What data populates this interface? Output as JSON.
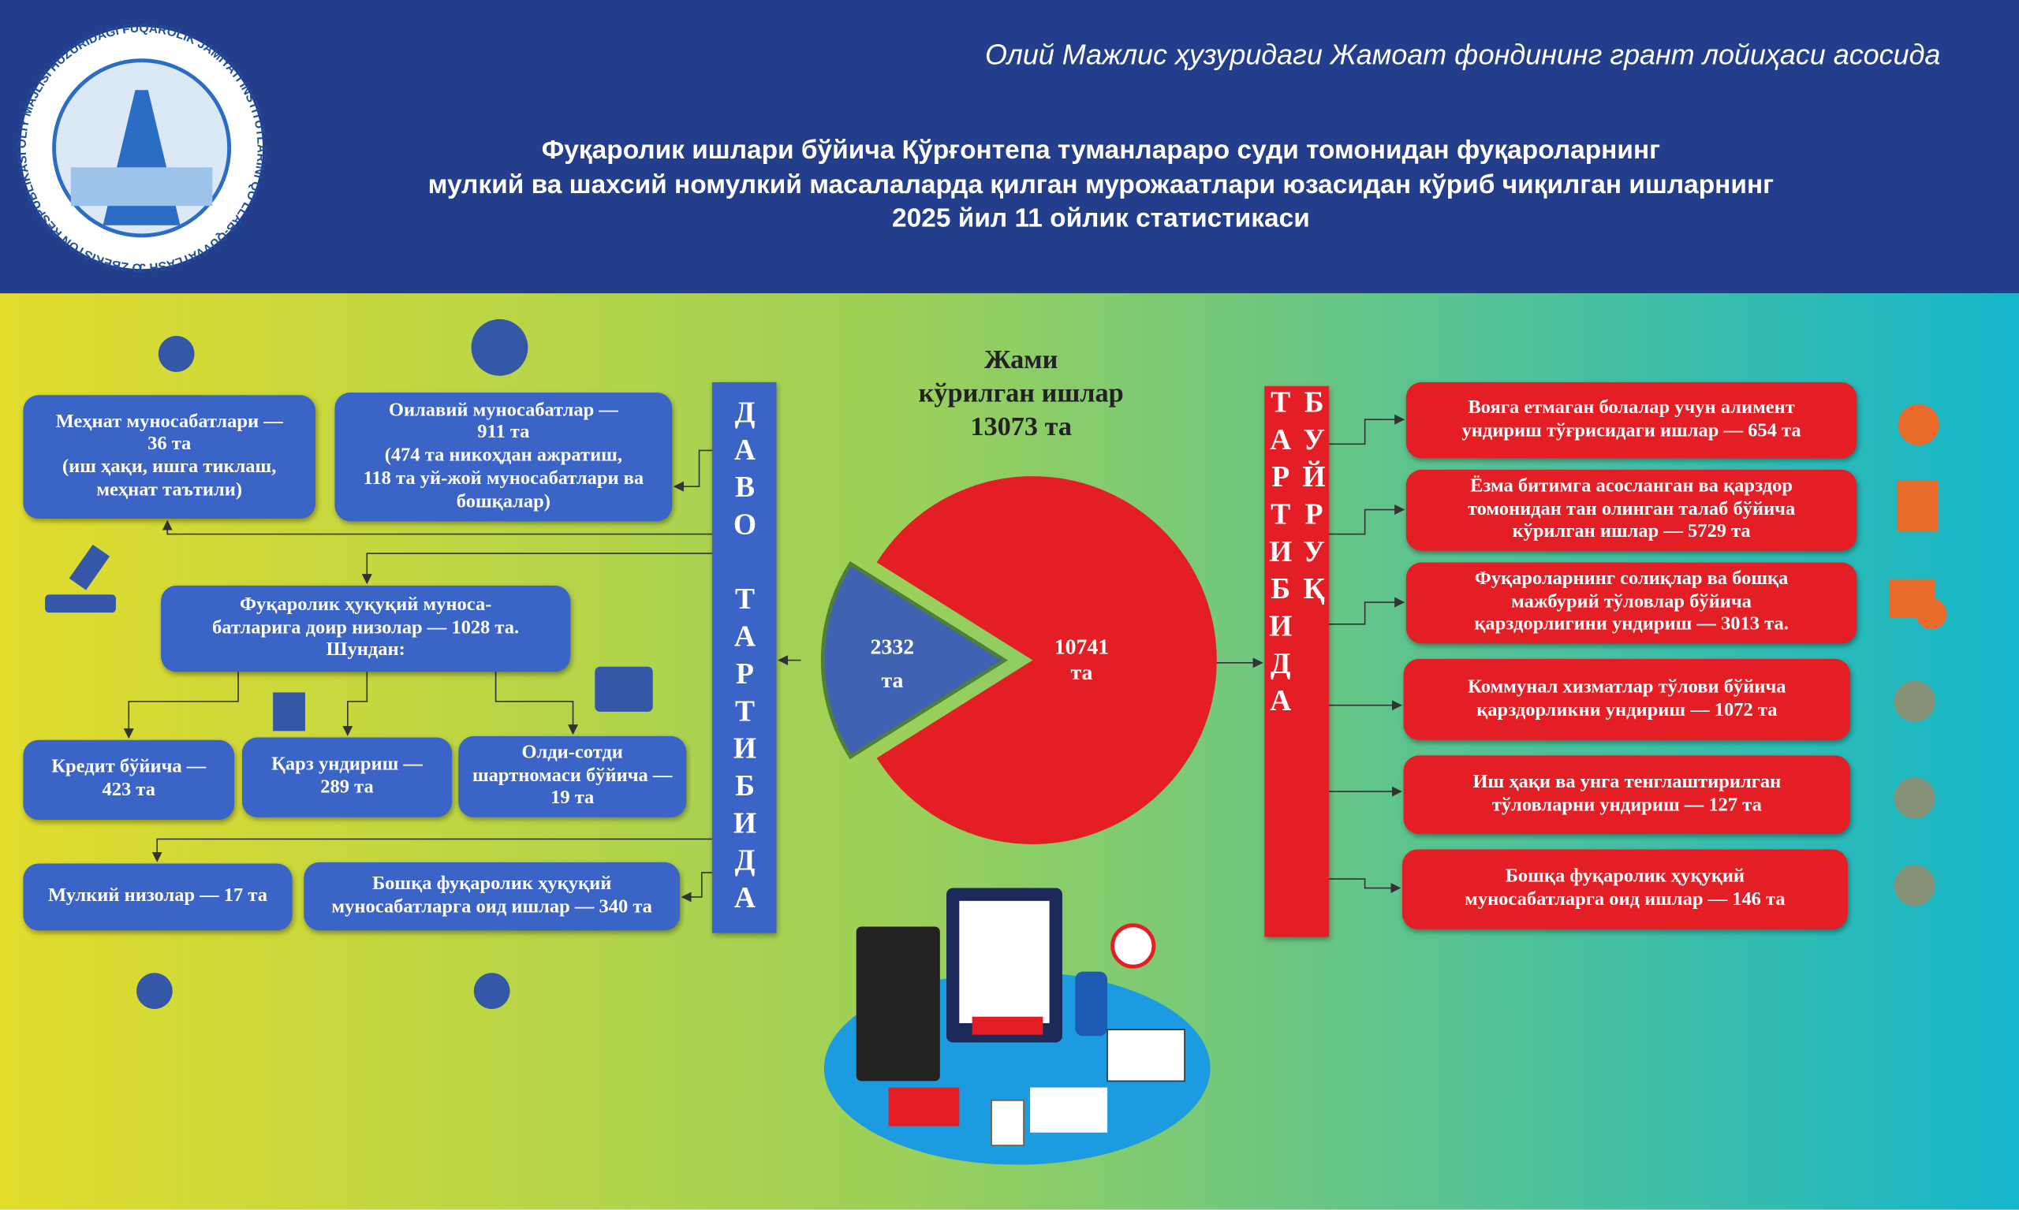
{
  "logo": {
    "ring_text": "OʻZBEKISTON RESPUBLIKASI OLIY MAJLISI HUZURIDAGI FUQAROLIK JAMIYATI INSTITUTLARINI QOʻLLAB-QUVVATLASH JAMOAT FONDI"
  },
  "header": {
    "subtitle": "Олий Мажлис ҳузуридаги Жамоат фондининг грант лойиҳаси асосида",
    "title_lines": [
      "Фуқаролик ишлари бўйича Қўрғонтепа туманлараро суди томонидан фуқароларнинг",
      "мулкий ва шахсий номулкий  масалаларда қилган мурожаатлари юзасидан кўриб чиқилган ишларнинг",
      "2025 йил 11 ойлик статистикаси"
    ]
  },
  "total": {
    "lines": [
      "Жами",
      "кўрилган ишлар",
      "13073 та"
    ]
  },
  "pie": {
    "slices": [
      {
        "value": 2332,
        "unit": "та",
        "color": "#3f62b3"
      },
      {
        "value": 10741,
        "unit": "та",
        "color": "#e31e24"
      }
    ]
  },
  "left": {
    "bar_label": "ДАВО ТАРТИБИДА",
    "boxes": [
      {
        "lines": [
          "Меҳнат муносабатлари —",
          "36 та",
          "(иш ҳақи,  ишга тиклаш,",
          "меҳнат таътили)"
        ]
      },
      {
        "lines": [
          "Оилавий муносабатлар —",
          "911 та",
          "(474 та никоҳдан ажратиш,",
          "118 та уй-жой муносабатлари ва",
          "бошқалар)"
        ]
      },
      {
        "lines": [
          "Фуқаролик ҳуқуқий муноса-",
          "батларига  доир низолар — 1028 та.",
          "Шундан:"
        ]
      },
      {
        "lines": [
          "Кредит бўйича —",
          "423 та"
        ]
      },
      {
        "lines": [
          "Қарз ундириш —",
          "289 та"
        ]
      },
      {
        "lines": [
          "Олди-сотди",
          "шартномаси бўйича —",
          "19 та"
        ]
      },
      {
        "lines": [
          "Мулкий низолар — 17 та"
        ]
      },
      {
        "lines": [
          "Бошқа фуқаролик ҳуқуқий",
          "муносабатларга оид ишлар — 340 та"
        ]
      }
    ]
  },
  "right": {
    "bar_label": "БУЙРУҚ ТАРТИБИДА",
    "boxes": [
      {
        "lines": [
          "Вояга етмаган болалар учун алимент",
          "ундириш тўғрисидаги ишлар — 654 та"
        ]
      },
      {
        "lines": [
          "Ёзма битимга асосланган ва қарздор",
          "томонидан тан олинган талаб бўйича",
          "кўрилган ишлар — 5729 та"
        ]
      },
      {
        "lines": [
          "Фуқароларнинг  солиқлар ва бошқа",
          "мажбурий тўловлар бўйича",
          "қарздорлигини ундириш — 3013 та."
        ]
      },
      {
        "lines": [
          "Коммунал хизматлар тўлови бўйича",
          "қарздорликни ундириш — 1072 та"
        ]
      },
      {
        "lines": [
          "Иш ҳақи ва унга тенглаштирилган",
          "тўловларни ундириш — 127 та"
        ]
      },
      {
        "lines": [
          "Бошқа фуқаролик ҳуқуқий",
          "муносабатларга оид ишлар — 146 та"
        ]
      }
    ]
  }
}
